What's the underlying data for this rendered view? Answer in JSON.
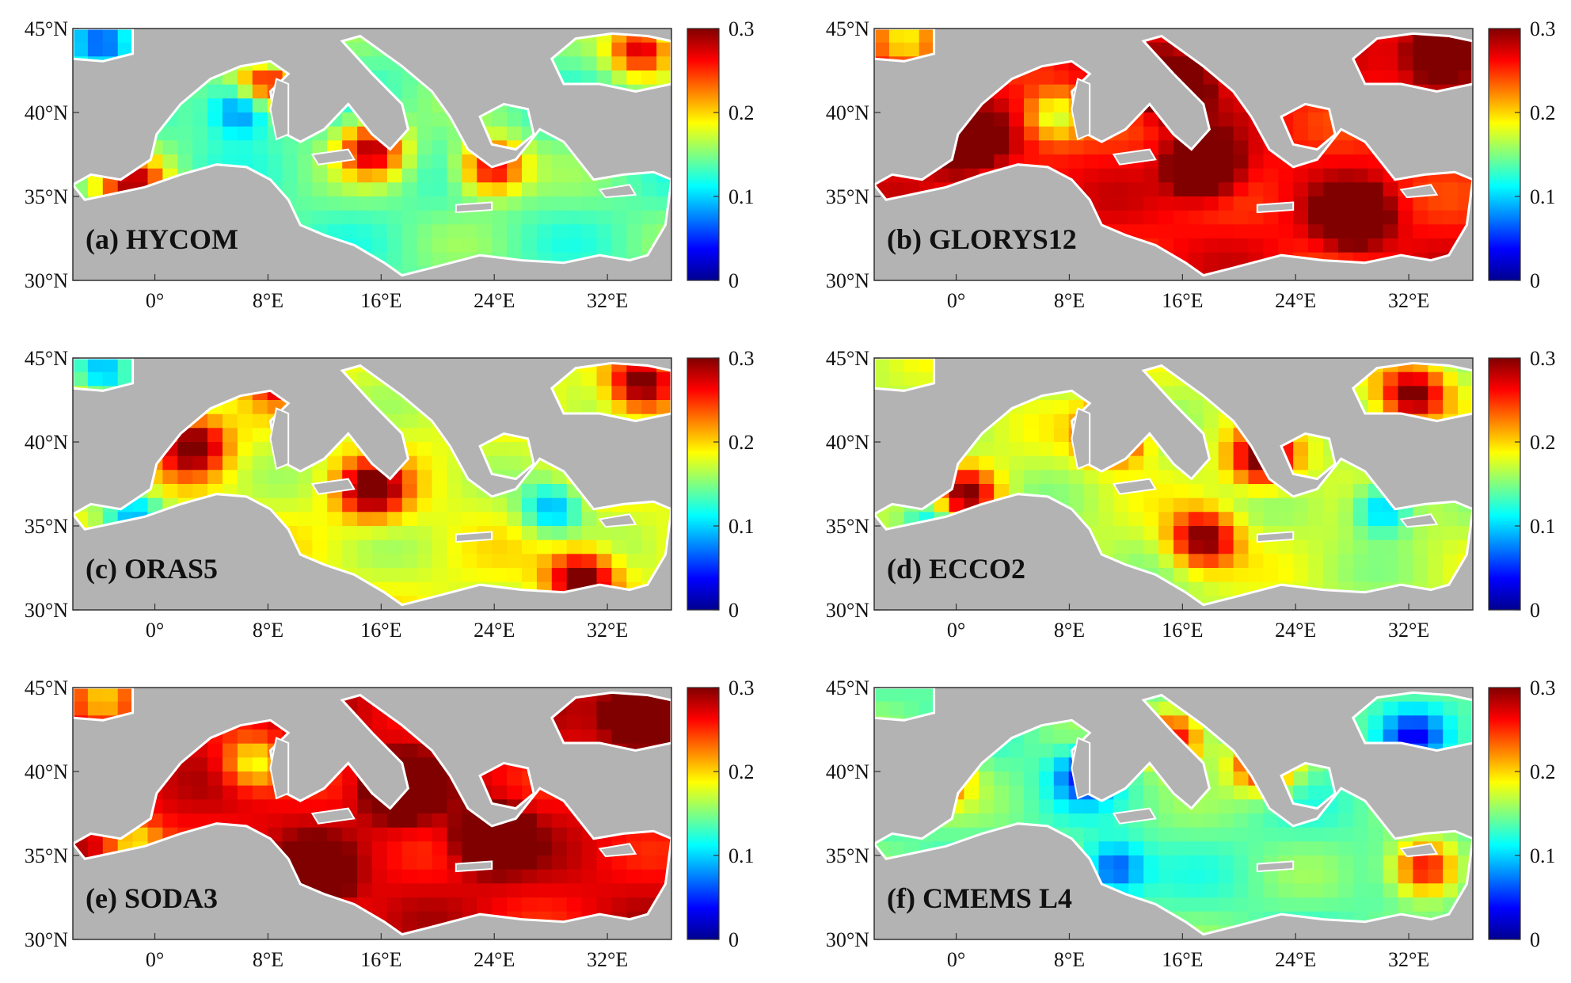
{
  "figure": {
    "lat_ticks": [
      "45°N",
      "40°N",
      "35°N",
      "30°N"
    ],
    "lon_ticks": [
      "0°",
      "8°E",
      "16°E",
      "24°E",
      "32°E"
    ],
    "colorbar": {
      "ticks": [
        "0.3",
        "0.2",
        "0.1",
        "0"
      ],
      "range": [
        0,
        0.3
      ],
      "colormap": "jet",
      "colors": [
        "#00008f",
        "#0000ff",
        "#0080ff",
        "#00ffff",
        "#80ff80",
        "#ffff00",
        "#ff8000",
        "#ff0000",
        "#800000"
      ]
    },
    "land_color": "#b3b3b3",
    "coast_color": "#ffffff",
    "panels": [
      {
        "label": "(a) HYCOM",
        "level": 0.14,
        "hot": [
          [
            0.33,
            0.2
          ],
          [
            0.5,
            0.48
          ],
          [
            0.7,
            0.55
          ],
          [
            0.1,
            0.62
          ],
          [
            0.95,
            0.08
          ]
        ],
        "cool": [
          [
            0.28,
            0.32
          ],
          [
            0.35,
            0.1
          ],
          [
            0.05,
            0.05
          ]
        ]
      },
      {
        "label": "(b) GLORYS12",
        "level": 0.26,
        "hot": [
          [
            0.15,
            0.45
          ],
          [
            0.55,
            0.55
          ],
          [
            0.8,
            0.75
          ],
          [
            0.95,
            0.1
          ],
          [
            0.5,
            0.22
          ]
        ],
        "cool": [
          [
            0.3,
            0.35
          ],
          [
            0.05,
            0.05
          ]
        ]
      },
      {
        "label": "(c) ORAS5",
        "level": 0.18,
        "hot": [
          [
            0.2,
            0.35
          ],
          [
            0.5,
            0.52
          ],
          [
            0.85,
            0.88
          ],
          [
            0.95,
            0.1
          ],
          [
            0.35,
            0.05
          ]
        ],
        "cool": [
          [
            0.8,
            0.6
          ],
          [
            0.05,
            0.05
          ],
          [
            0.1,
            0.62
          ]
        ]
      },
      {
        "label": "(d) ECCO2",
        "level": 0.17,
        "hot": [
          [
            0.55,
            0.72
          ],
          [
            0.15,
            0.55
          ],
          [
            0.9,
            0.15
          ],
          [
            0.4,
            0.3
          ],
          [
            0.65,
            0.4
          ]
        ],
        "cool": [
          [
            0.85,
            0.6
          ],
          [
            0.1,
            0.62
          ]
        ]
      },
      {
        "label": "(e) SODA3",
        "level": 0.27,
        "hot": [
          [
            0.55,
            0.4
          ],
          [
            0.7,
            0.6
          ],
          [
            0.4,
            0.75
          ],
          [
            0.95,
            0.1
          ]
        ],
        "cool": [
          [
            0.3,
            0.3
          ],
          [
            0.05,
            0.05
          ],
          [
            0.1,
            0.62
          ]
        ]
      },
      {
        "label": "(f) CMEMS L4",
        "level": 0.14,
        "hot": [
          [
            0.92,
            0.72
          ],
          [
            0.1,
            0.35
          ],
          [
            0.5,
            0.2
          ],
          [
            0.65,
            0.3
          ]
        ],
        "cool": [
          [
            0.35,
            0.35
          ],
          [
            0.4,
            0.72
          ],
          [
            0.9,
            0.2
          ]
        ]
      }
    ]
  }
}
